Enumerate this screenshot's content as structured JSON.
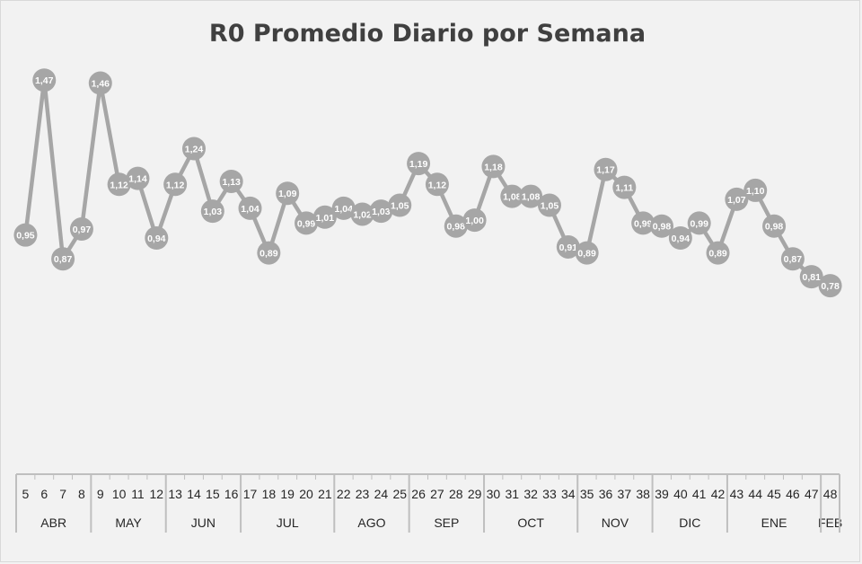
{
  "chart_data": {
    "type": "line",
    "title": "R0 Promedio Diario por Semana",
    "xlabel": "",
    "ylabel": "",
    "x": [
      5,
      6,
      7,
      8,
      9,
      10,
      11,
      12,
      13,
      14,
      15,
      16,
      17,
      18,
      19,
      20,
      21,
      22,
      23,
      24,
      25,
      26,
      27,
      28,
      29,
      30,
      31,
      32,
      33,
      34,
      35,
      36,
      37,
      38,
      39,
      40,
      41,
      42,
      43,
      44,
      45,
      46,
      47,
      48
    ],
    "values": [
      0.95,
      1.47,
      0.87,
      0.97,
      1.46,
      1.12,
      1.14,
      0.94,
      1.12,
      1.24,
      1.03,
      1.13,
      1.04,
      0.89,
      1.09,
      0.99,
      1.01,
      1.04,
      1.02,
      1.03,
      1.05,
      1.19,
      1.12,
      0.98,
      1.0,
      1.18,
      1.08,
      1.08,
      1.05,
      0.91,
      0.89,
      1.17,
      1.11,
      0.99,
      0.98,
      0.94,
      0.99,
      0.89,
      1.07,
      1.1,
      0.98,
      0.87,
      0.81,
      0.78
    ],
    "data_labels": [
      "0,95",
      "1,47",
      "0,87",
      "0,97",
      "1,46",
      "1,12",
      "1,14",
      "0,94",
      "1,12",
      "1,24",
      "1,03",
      "1,13",
      "1,04",
      "0,89",
      "1,09",
      "0,99",
      "1,01",
      "1,04",
      "1,02",
      "1,03",
      "1,05",
      "1,19",
      "1,12",
      "0,98",
      "1,00",
      "1,18",
      "1,08",
      "1,08",
      "1,05",
      "0,91",
      "0,89",
      "1,17",
      "1,11",
      "0,99",
      "0,98",
      "0,94",
      "0,99",
      "0,89",
      "1,07",
      "1,10",
      "0,98",
      "0,87",
      "0,81",
      "0,78"
    ],
    "months": [
      {
        "label": "ABR",
        "weeks": [
          5,
          6,
          7,
          8
        ]
      },
      {
        "label": "MAY",
        "weeks": [
          9,
          10,
          11,
          12
        ]
      },
      {
        "label": "JUN",
        "weeks": [
          13,
          14,
          15,
          16
        ]
      },
      {
        "label": "JUL",
        "weeks": [
          17,
          18,
          19,
          20,
          21
        ]
      },
      {
        "label": "AGO",
        "weeks": [
          22,
          23,
          24,
          25
        ]
      },
      {
        "label": "SEP",
        "weeks": [
          26,
          27,
          28,
          29
        ]
      },
      {
        "label": "OCT",
        "weeks": [
          30,
          31,
          32,
          33,
          34
        ]
      },
      {
        "label": "NOV",
        "weeks": [
          35,
          36,
          37,
          38
        ]
      },
      {
        "label": "DIC",
        "weeks": [
          39,
          40,
          41,
          42
        ]
      },
      {
        "label": "ENE",
        "weeks": [
          43,
          44,
          45,
          46,
          47
        ]
      },
      {
        "label": "FEB",
        "weeks": [
          48
        ]
      }
    ],
    "grid": false,
    "legend": "none",
    "colors": {
      "line": "#a6a6a6",
      "marker": "#a6a6a6",
      "marker_text": "#ffffff",
      "axis": "#bfbfbf",
      "background": "#f2f2f2",
      "title": "#404040"
    }
  }
}
